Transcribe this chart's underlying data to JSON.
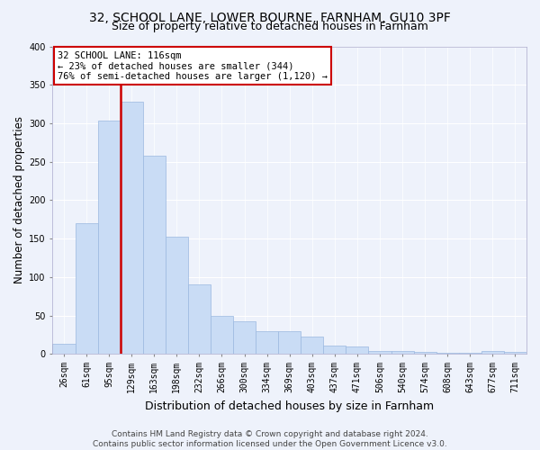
{
  "title1": "32, SCHOOL LANE, LOWER BOURNE, FARNHAM, GU10 3PF",
  "title2": "Size of property relative to detached houses in Farnham",
  "xlabel": "Distribution of detached houses by size in Farnham",
  "ylabel": "Number of detached properties",
  "categories": [
    "26sqm",
    "61sqm",
    "95sqm",
    "129sqm",
    "163sqm",
    "198sqm",
    "232sqm",
    "266sqm",
    "300sqm",
    "334sqm",
    "369sqm",
    "403sqm",
    "437sqm",
    "471sqm",
    "506sqm",
    "540sqm",
    "574sqm",
    "608sqm",
    "643sqm",
    "677sqm",
    "711sqm"
  ],
  "values": [
    13,
    170,
    303,
    328,
    258,
    153,
    91,
    50,
    43,
    30,
    30,
    23,
    11,
    10,
    4,
    4,
    3,
    2,
    1,
    4,
    3
  ],
  "bar_color": "#c9dcf5",
  "bar_edge_color": "#9ab8e0",
  "highlight_index": 3,
  "highlight_line_color": "#cc0000",
  "annotation_text": "32 SCHOOL LANE: 116sqm\n← 23% of detached houses are smaller (344)\n76% of semi-detached houses are larger (1,120) →",
  "annotation_box_color": "#ffffff",
  "annotation_border_color": "#cc0000",
  "footer_line1": "Contains HM Land Registry data © Crown copyright and database right 2024.",
  "footer_line2": "Contains public sector information licensed under the Open Government Licence v3.0.",
  "ylim": [
    0,
    400
  ],
  "background_color": "#eef2fb",
  "grid_color": "#ffffff",
  "title1_fontsize": 10,
  "title2_fontsize": 9,
  "tick_fontsize": 7,
  "ylabel_fontsize": 8.5,
  "xlabel_fontsize": 9,
  "footer_fontsize": 6.5,
  "annotation_fontsize": 7.5
}
